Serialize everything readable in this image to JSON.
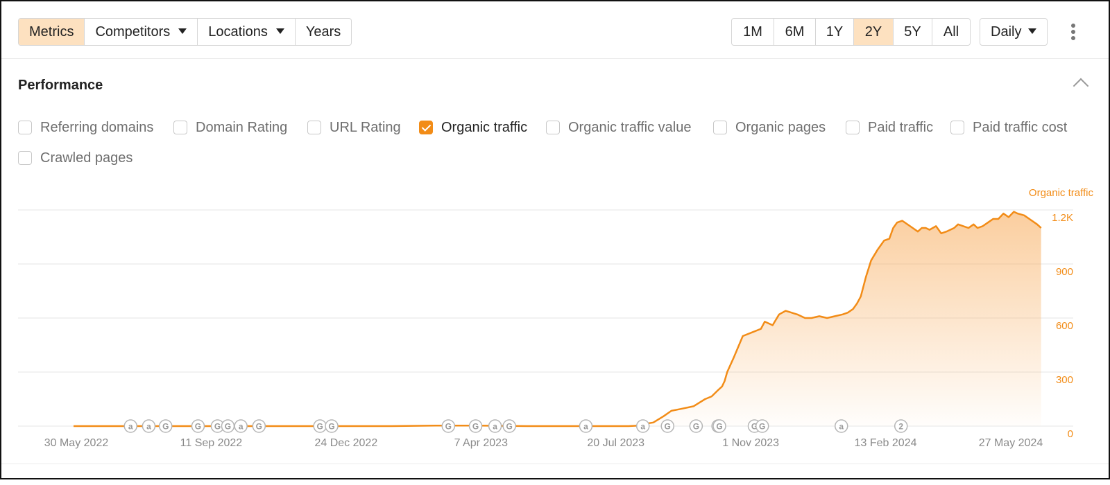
{
  "toolbar": {
    "tabs": [
      {
        "label": "Metrics",
        "active": true
      },
      {
        "label": "Competitors",
        "dropdown": true
      },
      {
        "label": "Locations",
        "dropdown": true
      },
      {
        "label": "Years"
      }
    ],
    "ranges": [
      "1M",
      "6M",
      "1Y",
      "2Y",
      "5Y",
      "All"
    ],
    "active_range": "2Y",
    "granularity": "Daily"
  },
  "section": {
    "title": "Performance",
    "metrics": [
      {
        "label": "Referring domains",
        "checked": false
      },
      {
        "label": "Domain Rating",
        "checked": false
      },
      {
        "label": "URL Rating",
        "checked": false
      },
      {
        "label": "Organic traffic",
        "checked": true
      },
      {
        "label": "Organic traffic value",
        "checked": false
      },
      {
        "label": "Organic pages",
        "checked": false
      },
      {
        "label": "Paid traffic",
        "checked": false
      },
      {
        "label": "Paid traffic cost",
        "checked": false
      },
      {
        "label": "Crawled pages",
        "checked": false
      }
    ]
  },
  "chart_data": {
    "type": "area",
    "series": [
      {
        "name": "Organic traffic",
        "color": "#f28c17",
        "x": [
          "2022-05-30",
          "2022-07-05",
          "2022-08-10",
          "2022-09-11",
          "2022-10-17",
          "2022-11-20",
          "2022-12-24",
          "2023-01-30",
          "2023-03-05",
          "2023-04-07",
          "2023-05-15",
          "2023-06-20",
          "2023-07-20",
          "2023-08-01",
          "2023-08-09",
          "2023-08-13",
          "2023-08-20",
          "2023-08-28",
          "2023-09-03",
          "2023-09-10",
          "2023-09-20",
          "2023-09-29",
          "2023-10-04",
          "2023-10-09",
          "2023-10-12",
          "2023-10-14",
          "2023-10-16",
          "2023-10-21",
          "2023-10-28",
          "2023-11-04",
          "2023-11-11",
          "2023-11-14",
          "2023-11-20",
          "2023-11-25",
          "2023-11-30",
          "2023-12-09",
          "2023-12-15",
          "2023-12-20",
          "2023-12-26",
          "2024-01-01",
          "2024-01-07",
          "2024-01-13",
          "2024-01-17",
          "2024-01-21",
          "2024-01-24",
          "2024-01-27",
          "2024-01-31",
          "2024-02-04",
          "2024-02-09",
          "2024-02-14",
          "2024-02-18",
          "2024-02-21",
          "2024-02-24",
          "2024-02-28",
          "2024-03-05",
          "2024-03-11",
          "2024-03-14",
          "2024-03-17",
          "2024-03-20",
          "2024-03-25",
          "2024-03-29",
          "2024-04-02",
          "2024-04-05",
          "2024-04-08",
          "2024-04-11",
          "2024-04-15",
          "2024-04-19",
          "2024-04-23",
          "2024-04-26",
          "2024-04-30",
          "2024-05-04",
          "2024-05-08",
          "2024-05-12",
          "2024-05-16",
          "2024-05-20",
          "2024-05-24",
          "2024-05-27",
          "2024-06-01",
          "2024-06-05",
          "2024-06-11",
          "2024-06-14"
        ],
        "values": [
          0,
          0,
          0,
          0,
          0,
          0,
          0,
          0,
          3,
          3,
          0,
          0,
          0,
          0,
          3,
          12,
          20,
          55,
          85,
          95,
          110,
          150,
          165,
          200,
          220,
          250,
          300,
          380,
          500,
          520,
          540,
          580,
          560,
          620,
          640,
          620,
          600,
          600,
          610,
          600,
          610,
          620,
          630,
          650,
          680,
          720,
          830,
          920,
          980,
          1030,
          1040,
          1100,
          1130,
          1140,
          1110,
          1080,
          1100,
          1100,
          1090,
          1110,
          1070,
          1080,
          1090,
          1100,
          1120,
          1110,
          1100,
          1120,
          1100,
          1110,
          1130,
          1150,
          1150,
          1180,
          1160,
          1190,
          1180,
          1170,
          1150,
          1120,
          1100
        ]
      }
    ],
    "x_tick_labels": [
      "30 May 2022",
      "11 Sep 2022",
      "24 Dec 2022",
      "7 Apr 2023",
      "20 Jul 2023",
      "1 Nov 2023",
      "13 Feb 2024",
      "27 May 2024"
    ],
    "y_axis": {
      "label": "Organic traffic",
      "ticks": [
        0,
        300,
        600,
        900,
        1200
      ],
      "tick_labels": [
        "0",
        "300",
        "600",
        "900",
        "1.2K"
      ],
      "range": [
        0,
        1200
      ],
      "position": "right"
    },
    "grid": true,
    "annotations": [
      {
        "date": "2022-07-13",
        "label": "a"
      },
      {
        "date": "2022-07-27",
        "label": "a"
      },
      {
        "date": "2022-08-09",
        "label": "G"
      },
      {
        "date": "2022-09-03",
        "label": "G"
      },
      {
        "date": "2022-09-18",
        "label": "G"
      },
      {
        "date": "2022-09-26",
        "label": "G"
      },
      {
        "date": "2022-10-06",
        "label": "a"
      },
      {
        "date": "2022-10-20",
        "label": "G"
      },
      {
        "date": "2022-12-06",
        "label": "G"
      },
      {
        "date": "2022-12-15",
        "label": "G"
      },
      {
        "date": "2023-03-15",
        "label": "G"
      },
      {
        "date": "2023-04-05",
        "label": "G"
      },
      {
        "date": "2023-04-20",
        "label": "a"
      },
      {
        "date": "2023-05-01",
        "label": "G"
      },
      {
        "date": "2023-06-29",
        "label": "a"
      },
      {
        "date": "2023-08-12",
        "label": "a"
      },
      {
        "date": "2023-08-31",
        "label": "G"
      },
      {
        "date": "2023-09-22",
        "label": "G"
      },
      {
        "date": "2023-10-09",
        "label": "G"
      },
      {
        "date": "2023-10-10",
        "label": "G"
      },
      {
        "date": "2023-11-06",
        "label": "G"
      },
      {
        "date": "2023-11-12",
        "label": "G"
      },
      {
        "date": "2024-01-12",
        "label": "a"
      },
      {
        "date": "2024-02-27",
        "label": "2"
      }
    ]
  }
}
